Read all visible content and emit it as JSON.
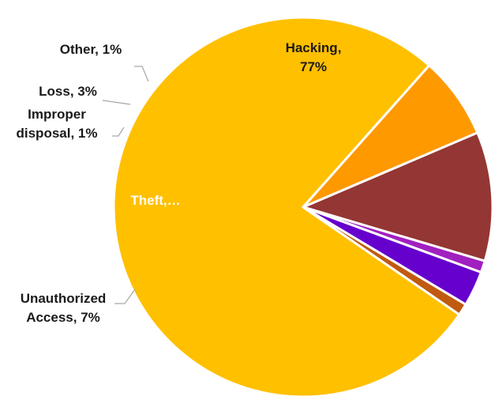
{
  "chart_data": {
    "type": "pie",
    "title": "",
    "slices": [
      {
        "name": "Hacking",
        "value": 77,
        "label_lines": [
          "Hacking,",
          "77%"
        ],
        "color": "#FFC000"
      },
      {
        "name": "Unauthorized Access",
        "value": 7,
        "label_lines": [
          "Unauthorized",
          "Access, 7%"
        ],
        "color": "#FF9900"
      },
      {
        "name": "Theft",
        "value": 11,
        "label_lines": [
          "Theft,…"
        ],
        "color": "#943634"
      },
      {
        "name": "Improper disposal",
        "value": 1,
        "label_lines": [
          "Improper",
          "disposal, 1%"
        ],
        "color": "#A020C0"
      },
      {
        "name": "Loss",
        "value": 3,
        "label_lines": [
          "Loss, 3%"
        ],
        "color": "#6600CC"
      },
      {
        "name": "Other",
        "value": 1,
        "label_lines": [
          "Other, 1%"
        ],
        "color": "#C05A10"
      }
    ],
    "legend": "none"
  }
}
